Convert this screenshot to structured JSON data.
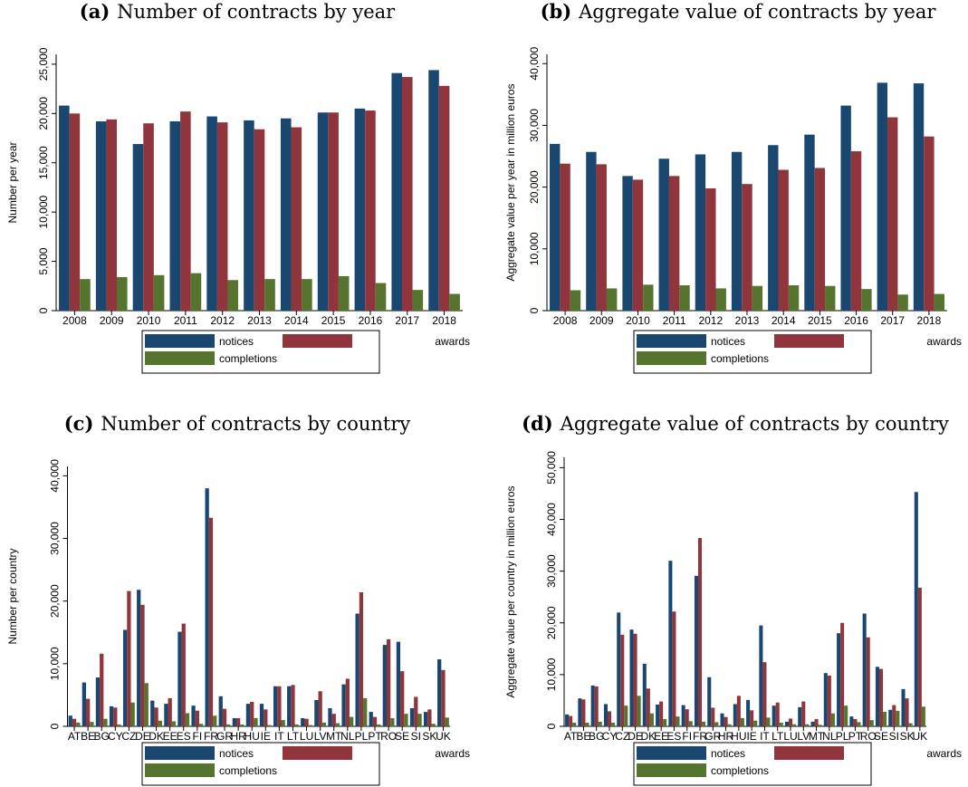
{
  "chart_data": [
    {
      "type": "bar",
      "label": "(a)",
      "title": "Number of contracts by year",
      "ylabel": "Number per year",
      "categories": [
        "2008",
        "2009",
        "2010",
        "2011",
        "2012",
        "2013",
        "2014",
        "2015",
        "2016",
        "2017",
        "2018"
      ],
      "series": [
        {
          "name": "notices",
          "color": "#1a476f",
          "values": [
            20800,
            19200,
            16900,
            19200,
            19700,
            19300,
            19500,
            20100,
            20500,
            24100,
            24400
          ]
        },
        {
          "name": "awards",
          "color": "#90353b",
          "values": [
            20000,
            19400,
            19000,
            20200,
            19100,
            18400,
            18600,
            20100,
            20300,
            23700,
            22800
          ]
        },
        {
          "name": "completions",
          "color": "#55752f",
          "values": [
            3200,
            3400,
            3600,
            3800,
            3100,
            3200,
            3200,
            3500,
            2800,
            2100,
            1700
          ]
        }
      ],
      "ylim": [
        0,
        26000
      ],
      "yticks": [
        0,
        {
          "value": 5000,
          "label": "5,000"
        },
        {
          "value": 10000,
          "label": "10,000"
        },
        {
          "value": 15000,
          "label": "15,000"
        },
        {
          "value": 20000,
          "label": "20,000"
        },
        {
          "value": 25000,
          "label": "25,000"
        }
      ],
      "legend_position": "bottom"
    },
    {
      "type": "bar",
      "label": "(b)",
      "title": "Aggregate value of contracts by year",
      "ylabel": "Aggregate value per year in million euros",
      "categories": [
        "2008",
        "2009",
        "2010",
        "2011",
        "2012",
        "2013",
        "2014",
        "2015",
        "2016",
        "2017",
        "2018"
      ],
      "series": [
        {
          "name": "notices",
          "color": "#1a476f",
          "values": [
            27000,
            25700,
            21800,
            24600,
            25300,
            25700,
            26800,
            28500,
            33200,
            36900,
            36800
          ]
        },
        {
          "name": "awards",
          "color": "#90353b",
          "values": [
            23800,
            23700,
            21200,
            21800,
            19800,
            20500,
            22800,
            23100,
            25800,
            31300,
            28200
          ]
        },
        {
          "name": "completions",
          "color": "#55752f",
          "values": [
            3300,
            3600,
            4200,
            4100,
            3600,
            4000,
            4100,
            4000,
            3500,
            2600,
            2700
          ]
        }
      ],
      "ylim": [
        0,
        41500
      ],
      "yticks": [
        0,
        {
          "value": 10000,
          "label": "10,000"
        },
        {
          "value": 20000,
          "label": "20,000"
        },
        {
          "value": 30000,
          "label": "30,000"
        },
        {
          "value": 40000,
          "label": "40,000"
        }
      ],
      "legend_position": "bottom"
    },
    {
      "type": "bar",
      "label": "(c)",
      "title": "Number of contracts by country",
      "ylabel": "Number per country",
      "categories": [
        "AT",
        "BE",
        "BG",
        "CY",
        "CZ",
        "DE",
        "DK",
        "EE",
        "ES",
        "FI",
        "FR",
        "GR",
        "HR",
        "HU",
        "IE",
        "IT",
        "LT",
        "LU",
        "LV",
        "MT",
        "NL",
        "PL",
        "PT",
        "RO",
        "SE",
        "SI",
        "SK",
        "UK"
      ],
      "series": [
        {
          "name": "notices",
          "color": "#1a476f",
          "values": [
            1700,
            7000,
            7800,
            3200,
            15400,
            21800,
            4100,
            3600,
            15100,
            3300,
            38000,
            4800,
            1300,
            3600,
            3600,
            6400,
            6400,
            1300,
            4200,
            2900,
            6700,
            18000,
            2300,
            13000,
            13500,
            2900,
            2300,
            10700
          ]
        },
        {
          "name": "awards",
          "color": "#90353b",
          "values": [
            1200,
            4400,
            11600,
            3000,
            21600,
            19400,
            3000,
            4500,
            16400,
            2500,
            33300,
            2800,
            1300,
            3900,
            2700,
            6400,
            6600,
            1200,
            5600,
            2000,
            7600,
            21400,
            1500,
            13900,
            8800,
            4700,
            2700,
            9000
          ]
        },
        {
          "name": "completions",
          "color": "#55752f",
          "values": [
            600,
            700,
            1200,
            300,
            3800,
            6900,
            900,
            800,
            2100,
            400,
            1700,
            300,
            300,
            1300,
            200,
            1000,
            300,
            200,
            600,
            500,
            1500,
            4500,
            300,
            1300,
            2000,
            2000,
            400,
            1400
          ]
        }
      ],
      "ylim": [
        0,
        41500
      ],
      "yticks": [
        0,
        {
          "value": 10000,
          "label": "10,000"
        },
        {
          "value": 20000,
          "label": "20,000"
        },
        {
          "value": 30000,
          "label": "30,000"
        },
        {
          "value": 40000,
          "label": "40,000"
        }
      ],
      "legend_position": "bottom"
    },
    {
      "type": "bar",
      "label": "(d)",
      "title": "Aggregate value of contracts by country",
      "ylabel": "Aggregate value per country in million euros",
      "categories": [
        "AT",
        "BE",
        "BG",
        "CY",
        "CZ",
        "DE",
        "DK",
        "EE",
        "ES",
        "FI",
        "FR",
        "GR",
        "HR",
        "HU",
        "IE",
        "IT",
        "LT",
        "LU",
        "LV",
        "MT",
        "NL",
        "PL",
        "PT",
        "RO",
        "SE",
        "SI",
        "SK",
        "UK"
      ],
      "series": [
        {
          "name": "notices",
          "color": "#1a476f",
          "values": [
            2300,
            5400,
            7900,
            4300,
            22000,
            18700,
            12100,
            4200,
            32000,
            4100,
            29100,
            9500,
            2500,
            4300,
            5100,
            19500,
            4000,
            900,
            3700,
            900,
            10300,
            18000,
            1900,
            21800,
            11500,
            3200,
            7200,
            45300
          ]
        },
        {
          "name": "awards",
          "color": "#90353b",
          "values": [
            2000,
            5200,
            7700,
            2900,
            17700,
            17900,
            7300,
            4800,
            22200,
            3300,
            36400,
            3600,
            1800,
            5900,
            3100,
            12400,
            4600,
            1500,
            4800,
            1400,
            9800,
            20000,
            1400,
            17200,
            11100,
            4100,
            5400,
            26800
          ]
        },
        {
          "name": "completions",
          "color": "#55752f",
          "values": [
            700,
            700,
            900,
            700,
            4000,
            5900,
            2500,
            1400,
            1900,
            1000,
            900,
            800,
            400,
            1600,
            1100,
            1700,
            700,
            400,
            400,
            300,
            2500,
            4000,
            800,
            1200,
            2800,
            3000,
            600,
            3800
          ]
        }
      ],
      "ylim": [
        0,
        52000
      ],
      "yticks": [
        0,
        {
          "value": 10000,
          "label": "10,000"
        },
        {
          "value": 20000,
          "label": "20,000"
        },
        {
          "value": 30000,
          "label": "30,000"
        },
        {
          "value": 40000,
          "label": "40,000"
        },
        {
          "value": 50000,
          "label": "50,000"
        }
      ],
      "legend_position": "bottom"
    }
  ]
}
